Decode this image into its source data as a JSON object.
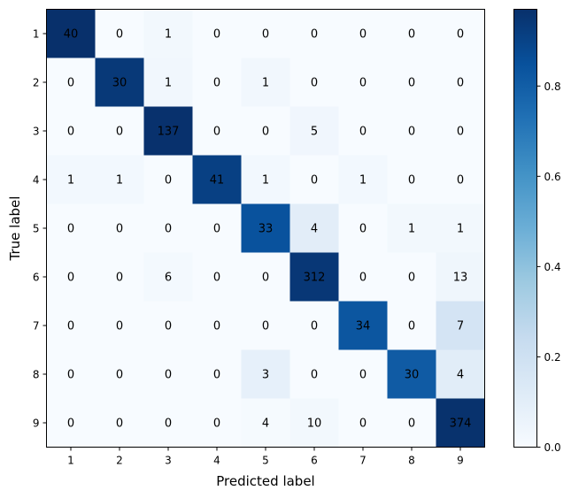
{
  "chart_data": {
    "type": "heatmap",
    "title": "",
    "xlabel": "Predicted label",
    "ylabel": "True label",
    "x_categories": [
      "1",
      "2",
      "3",
      "4",
      "5",
      "6",
      "7",
      "8",
      "9"
    ],
    "y_categories": [
      "1",
      "2",
      "3",
      "4",
      "5",
      "6",
      "7",
      "8",
      "9"
    ],
    "matrix": [
      [
        40,
        0,
        1,
        0,
        0,
        0,
        0,
        0,
        0
      ],
      [
        0,
        30,
        1,
        0,
        1,
        0,
        0,
        0,
        0
      ],
      [
        0,
        0,
        137,
        0,
        0,
        5,
        0,
        0,
        0
      ],
      [
        1,
        1,
        0,
        41,
        1,
        0,
        1,
        0,
        0
      ],
      [
        0,
        0,
        0,
        0,
        33,
        4,
        0,
        1,
        1
      ],
      [
        0,
        0,
        6,
        0,
        0,
        312,
        0,
        0,
        13
      ],
      [
        0,
        0,
        0,
        0,
        0,
        0,
        34,
        0,
        7
      ],
      [
        0,
        0,
        0,
        0,
        3,
        0,
        0,
        30,
        4
      ],
      [
        0,
        0,
        0,
        0,
        4,
        10,
        0,
        0,
        374
      ]
    ],
    "color_encoding": "row-normalized",
    "colormap": "Blues",
    "colormap_stops": [
      "#f7fbff",
      "#deebf7",
      "#c6dbef",
      "#9ecae1",
      "#6baed6",
      "#4292c6",
      "#2171b5",
      "#08519c",
      "#08306b"
    ],
    "colorbar": {
      "range": [
        0,
        0.97
      ],
      "ticks": [
        "0.0",
        "0.2",
        "0.4",
        "0.6",
        "0.8"
      ],
      "tick_values": [
        0.0,
        0.2,
        0.4,
        0.6,
        0.8
      ]
    }
  }
}
